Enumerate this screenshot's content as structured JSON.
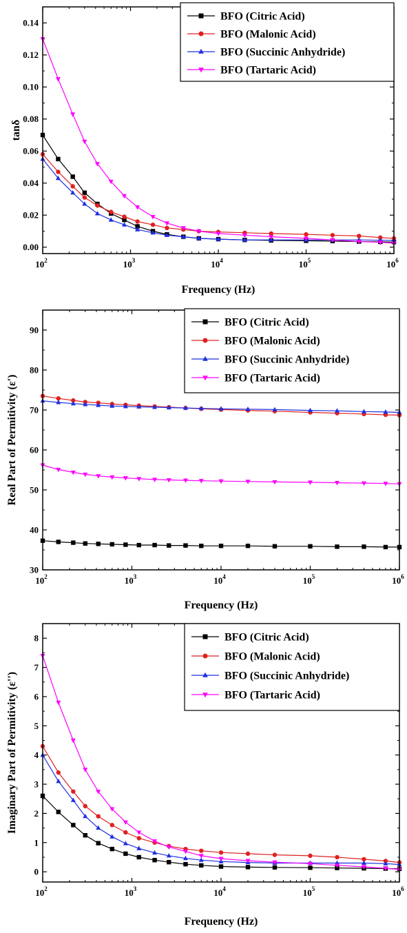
{
  "chart_data": [
    {
      "type": "line",
      "xscale": "log",
      "xlim": [
        100,
        1000000
      ],
      "ylim": [
        -0.004,
        0.15
      ],
      "xlabel": "Frequency (Hz)",
      "ylabel": "tanδ",
      "xticks": [
        "10^2",
        "10^3",
        "10^4",
        "10^5",
        "10^6"
      ],
      "yticks": [
        0.0,
        0.02,
        0.04,
        0.06,
        0.08,
        0.1,
        0.12,
        0.14
      ],
      "ytick_labels": [
        "0.00",
        "0.02",
        "0.04",
        "0.06",
        "0.08",
        "0.10",
        "0.12",
        "0.14"
      ],
      "legend_position": "top-right",
      "x": [
        100,
        150,
        220,
        300,
        420,
        600,
        850,
        1200,
        1800,
        2600,
        4000,
        6000,
        10000,
        20000,
        40000,
        100000,
        200000,
        400000,
        700000,
        1000000
      ],
      "series": [
        {
          "name": "BFO (Citric Acid)",
          "color": "#000000",
          "marker": "square",
          "values": [
            0.07,
            0.055,
            0.044,
            0.034,
            0.027,
            0.021,
            0.017,
            0.013,
            0.01,
            0.008,
            0.0065,
            0.0055,
            0.005,
            0.0045,
            0.0042,
            0.004,
            0.0038,
            0.0035,
            0.0033,
            0.0032
          ]
        },
        {
          "name": "BFO (Malonic Acid)",
          "color": "#e02020",
          "marker": "circle",
          "values": [
            0.058,
            0.047,
            0.038,
            0.031,
            0.026,
            0.022,
            0.019,
            0.016,
            0.014,
            0.012,
            0.011,
            0.01,
            0.0095,
            0.009,
            0.0085,
            0.008,
            0.0075,
            0.007,
            0.006,
            0.0055
          ]
        },
        {
          "name": "BFO (Succinic Anhydride)",
          "color": "#1f2fe0",
          "marker": "triangle-up",
          "values": [
            0.055,
            0.043,
            0.034,
            0.027,
            0.021,
            0.017,
            0.014,
            0.011,
            0.009,
            0.0075,
            0.0065,
            0.0055,
            0.005,
            0.0045,
            0.0045,
            0.0045,
            0.0045,
            0.0045,
            0.0043,
            0.0042
          ]
        },
        {
          "name": "BFO (Tartaric Acid)",
          "color": "#ff00ff",
          "marker": "triangle-down",
          "values": [
            0.13,
            0.105,
            0.083,
            0.066,
            0.052,
            0.041,
            0.032,
            0.025,
            0.019,
            0.015,
            0.012,
            0.01,
            0.0085,
            0.0075,
            0.0065,
            0.0055,
            0.0045,
            0.0035,
            0.003,
            0.0025
          ]
        }
      ]
    },
    {
      "type": "line",
      "xscale": "log",
      "xlim": [
        100,
        1000000
      ],
      "ylim": [
        30,
        95
      ],
      "xlabel": "Frequency (Hz)",
      "ylabel": "Real Part of Permitivity (ε')",
      "xticks": [
        "10^2",
        "10^3",
        "10^4",
        "10^5",
        "10^6"
      ],
      "yticks": [
        30,
        40,
        50,
        60,
        70,
        80,
        90
      ],
      "ytick_labels": [
        "30",
        "40",
        "50",
        "60",
        "70",
        "80",
        "90"
      ],
      "legend_position": "top-right",
      "x": [
        100,
        150,
        220,
        300,
        420,
        600,
        850,
        1200,
        1800,
        2600,
        4000,
        6000,
        10000,
        20000,
        40000,
        100000,
        200000,
        400000,
        700000,
        1000000
      ],
      "series": [
        {
          "name": "BFO (Citric Acid)",
          "color": "#000000",
          "marker": "square",
          "values": [
            37.3,
            37.0,
            36.8,
            36.6,
            36.5,
            36.4,
            36.3,
            36.2,
            36.2,
            36.1,
            36.1,
            36.0,
            36.0,
            36.0,
            35.9,
            35.9,
            35.8,
            35.8,
            35.7,
            35.7
          ]
        },
        {
          "name": "BFO (Malonic Acid)",
          "color": "#e02020",
          "marker": "circle",
          "values": [
            73.5,
            72.9,
            72.4,
            72.0,
            71.8,
            71.5,
            71.3,
            71.1,
            70.9,
            70.7,
            70.5,
            70.3,
            70.1,
            69.9,
            69.7,
            69.4,
            69.2,
            69.0,
            68.8,
            68.7
          ]
        },
        {
          "name": "BFO (Succinic Anhydride)",
          "color": "#1f2fe0",
          "marker": "triangle-up",
          "values": [
            72.3,
            71.9,
            71.6,
            71.4,
            71.2,
            71.0,
            70.9,
            70.8,
            70.7,
            70.6,
            70.5,
            70.4,
            70.3,
            70.2,
            70.1,
            69.9,
            69.8,
            69.6,
            69.5,
            69.4
          ]
        },
        {
          "name": "BFO (Tartaric Acid)",
          "color": "#ff00ff",
          "marker": "triangle-down",
          "values": [
            56.2,
            55.1,
            54.4,
            53.9,
            53.5,
            53.2,
            53.0,
            52.8,
            52.6,
            52.5,
            52.4,
            52.3,
            52.2,
            52.1,
            52.0,
            51.9,
            51.8,
            51.7,
            51.6,
            51.5
          ]
        }
      ]
    },
    {
      "type": "line",
      "xscale": "log",
      "xlim": [
        100,
        1000000
      ],
      "ylim": [
        -0.35,
        8.5
      ],
      "xlabel": "Frequency (Hz)",
      "ylabel": "Imaginary Part of Permitivity (ε'')",
      "xticks": [
        "10^2",
        "10^3",
        "10^4",
        "10^5",
        "10^6"
      ],
      "yticks": [
        0,
        1,
        2,
        3,
        4,
        5,
        6,
        7,
        8
      ],
      "ytick_labels": [
        "0",
        "1",
        "2",
        "3",
        "4",
        "5",
        "6",
        "7",
        "8"
      ],
      "legend_position": "top-right",
      "x": [
        100,
        150,
        220,
        300,
        420,
        600,
        850,
        1200,
        1800,
        2600,
        4000,
        6000,
        10000,
        20000,
        40000,
        100000,
        200000,
        400000,
        700000,
        1000000
      ],
      "series": [
        {
          "name": "BFO (Citric Acid)",
          "color": "#000000",
          "marker": "square",
          "values": [
            2.6,
            2.05,
            1.6,
            1.25,
            0.98,
            0.78,
            0.62,
            0.5,
            0.4,
            0.33,
            0.26,
            0.22,
            0.18,
            0.16,
            0.15,
            0.14,
            0.13,
            0.12,
            0.11,
            0.1
          ]
        },
        {
          "name": "BFO (Malonic Acid)",
          "color": "#e02020",
          "marker": "circle",
          "values": [
            4.3,
            3.4,
            2.75,
            2.25,
            1.9,
            1.6,
            1.35,
            1.15,
            1.0,
            0.88,
            0.78,
            0.72,
            0.66,
            0.62,
            0.58,
            0.55,
            0.5,
            0.43,
            0.37,
            0.32
          ]
        },
        {
          "name": "BFO (Succinic Anhydride)",
          "color": "#1f2fe0",
          "marker": "triangle-up",
          "values": [
            4.0,
            3.1,
            2.45,
            1.9,
            1.5,
            1.2,
            0.97,
            0.8,
            0.65,
            0.55,
            0.46,
            0.4,
            0.35,
            0.32,
            0.3,
            0.3,
            0.3,
            0.3,
            0.28,
            0.25
          ]
        },
        {
          "name": "BFO (Tartaric Acid)",
          "color": "#ff00ff",
          "marker": "triangle-down",
          "values": [
            7.4,
            5.8,
            4.5,
            3.5,
            2.75,
            2.15,
            1.7,
            1.35,
            1.05,
            0.85,
            0.7,
            0.55,
            0.45,
            0.38,
            0.33,
            0.28,
            0.22,
            0.17,
            0.12,
            0.08
          ]
        }
      ]
    }
  ]
}
